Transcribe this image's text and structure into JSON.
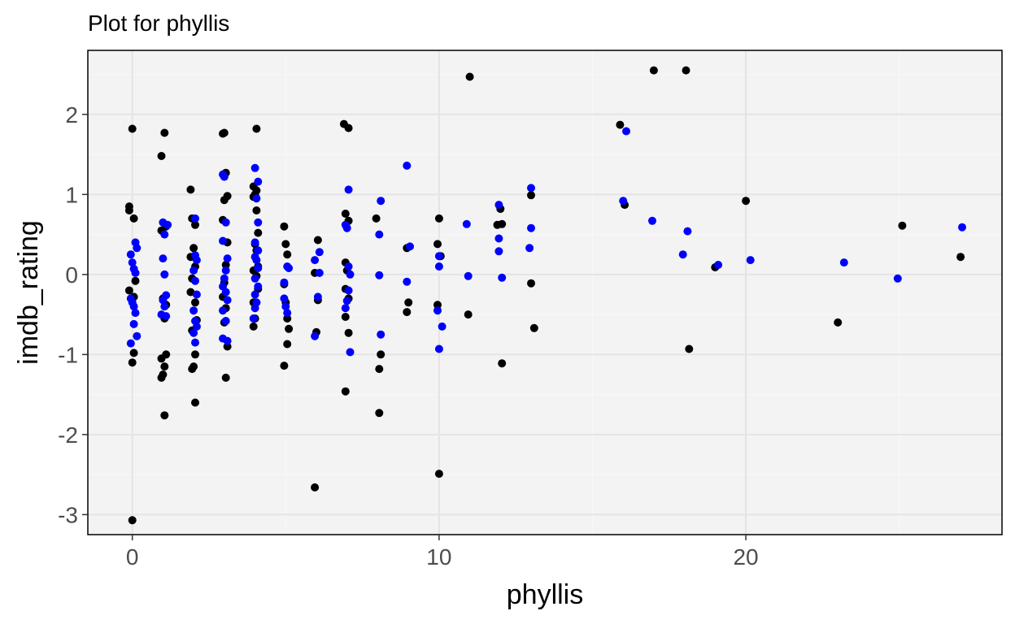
{
  "chart_data": {
    "type": "scatter",
    "title": "Plot for  phyllis",
    "xlabel": "phyllis",
    "ylabel": "imdb_rating",
    "xlim": [
      -1.45,
      28.35
    ],
    "ylim": [
      -3.25,
      2.8
    ],
    "x_ticks": [
      0,
      10,
      20
    ],
    "y_ticks": [
      -3,
      -2,
      -1,
      0,
      1,
      2
    ],
    "x_tick_labels": [
      "0",
      "10",
      "20"
    ],
    "y_tick_labels": [
      "-3",
      "-2",
      "-1",
      "0",
      "1",
      "2"
    ],
    "grid": true,
    "panel_background": "#f3f3f3",
    "grid_color": "#e4e4e4",
    "series": [
      {
        "color": "#000000",
        "points": [
          [
            0,
            1.82
          ],
          [
            -0.1,
            0.85
          ],
          [
            -0.1,
            0.8
          ],
          [
            0.05,
            0.7
          ],
          [
            -0.1,
            -0.2
          ],
          [
            0.1,
            -0.08
          ],
          [
            0.05,
            -0.28
          ],
          [
            0.05,
            -0.98
          ],
          [
            0.0,
            -1.1
          ],
          [
            0.0,
            -3.07
          ],
          [
            1.05,
            1.77
          ],
          [
            0.95,
            1.48
          ],
          [
            1.1,
            0.6
          ],
          [
            0.95,
            0.55
          ],
          [
            1.0,
            -0.3
          ],
          [
            1.1,
            -0.38
          ],
          [
            1.05,
            -0.55
          ],
          [
            1.1,
            -1.0
          ],
          [
            0.95,
            -1.05
          ],
          [
            1.05,
            -1.15
          ],
          [
            1.0,
            -1.25
          ],
          [
            0.95,
            -1.29
          ],
          [
            1.05,
            -1.76
          ],
          [
            1.9,
            1.06
          ],
          [
            1.95,
            0.7
          ],
          [
            2.05,
            0.62
          ],
          [
            2.0,
            0.33
          ],
          [
            1.9,
            0.22
          ],
          [
            2.05,
            0.1
          ],
          [
            1.95,
            -0.05
          ],
          [
            1.9,
            -0.22
          ],
          [
            2.05,
            -0.35
          ],
          [
            2.1,
            -0.57
          ],
          [
            1.95,
            -0.7
          ],
          [
            2.05,
            -1.0
          ],
          [
            2.0,
            -1.15
          ],
          [
            1.95,
            -1.18
          ],
          [
            2.05,
            -1.6
          ],
          [
            3.0,
            1.77
          ],
          [
            2.95,
            1.76
          ],
          [
            3.05,
            1.27
          ],
          [
            3.1,
            0.98
          ],
          [
            3.0,
            0.93
          ],
          [
            2.95,
            0.68
          ],
          [
            3.1,
            0.4
          ],
          [
            3.05,
            0.12
          ],
          [
            3.0,
            -0.1
          ],
          [
            2.95,
            -0.28
          ],
          [
            3.05,
            -0.42
          ],
          [
            3.0,
            -0.6
          ],
          [
            3.1,
            -0.9
          ],
          [
            3.05,
            -1.29
          ],
          [
            4.05,
            1.82
          ],
          [
            3.95,
            1.1
          ],
          [
            4.05,
            1.05
          ],
          [
            4.0,
            1.0
          ],
          [
            3.95,
            0.97
          ],
          [
            4.05,
            0.8
          ],
          [
            4.1,
            0.52
          ],
          [
            4.0,
            0.38
          ],
          [
            4.05,
            0.3
          ],
          [
            4.1,
            0.1
          ],
          [
            3.95,
            0.05
          ],
          [
            4.05,
            -0.02
          ],
          [
            4.1,
            -0.18
          ],
          [
            3.95,
            -0.35
          ],
          [
            4.0,
            -0.55
          ],
          [
            3.95,
            -0.65
          ],
          [
            4.95,
            0.6
          ],
          [
            5.0,
            0.38
          ],
          [
            5.05,
            0.25
          ],
          [
            4.95,
            -0.12
          ],
          [
            5.0,
            -0.35
          ],
          [
            5.05,
            -0.55
          ],
          [
            5.1,
            -0.68
          ],
          [
            5.05,
            -0.87
          ],
          [
            4.95,
            -1.14
          ],
          [
            6.05,
            0.43
          ],
          [
            5.95,
            0.02
          ],
          [
            6.05,
            -0.32
          ],
          [
            6.0,
            -0.72
          ],
          [
            5.95,
            -2.66
          ],
          [
            6.9,
            1.88
          ],
          [
            7.05,
            1.83
          ],
          [
            6.95,
            0.76
          ],
          [
            7.05,
            0.67
          ],
          [
            6.95,
            0.15
          ],
          [
            7.0,
            0.05
          ],
          [
            6.95,
            -0.18
          ],
          [
            7.05,
            -0.3
          ],
          [
            6.95,
            -0.53
          ],
          [
            7.05,
            -0.73
          ],
          [
            6.95,
            -1.46
          ],
          [
            7.95,
            0.7
          ],
          [
            8.1,
            -1.0
          ],
          [
            8.05,
            -1.18
          ],
          [
            8.05,
            -1.73
          ],
          [
            8.95,
            0.33
          ],
          [
            9.0,
            -0.35
          ],
          [
            8.95,
            -0.47
          ],
          [
            10.0,
            0.7
          ],
          [
            9.95,
            0.38
          ],
          [
            10.05,
            0.23
          ],
          [
            9.95,
            -0.38
          ],
          [
            10.0,
            -2.49
          ],
          [
            11.0,
            2.47
          ],
          [
            10.95,
            -0.5
          ],
          [
            12.0,
            0.82
          ],
          [
            11.9,
            0.62
          ],
          [
            12.05,
            0.63
          ],
          [
            12.05,
            -1.11
          ],
          [
            13.0,
            0.99
          ],
          [
            13.0,
            -0.11
          ],
          [
            13.1,
            -0.67
          ],
          [
            15.9,
            1.87
          ],
          [
            16.05,
            0.87
          ],
          [
            17.0,
            2.55
          ],
          [
            18.05,
            2.55
          ],
          [
            18.15,
            -0.93
          ],
          [
            19.0,
            0.09
          ],
          [
            20.0,
            0.92
          ],
          [
            23.0,
            -0.6
          ],
          [
            25.1,
            0.61
          ],
          [
            27.0,
            0.22
          ]
        ]
      },
      {
        "color": "#0000ff",
        "points": [
          [
            0.1,
            0.4
          ],
          [
            0.15,
            0.33
          ],
          [
            -0.05,
            0.25
          ],
          [
            0.0,
            0.15
          ],
          [
            0.05,
            0.07
          ],
          [
            0.1,
            0.02
          ],
          [
            -0.05,
            -0.3
          ],
          [
            0.0,
            -0.35
          ],
          [
            0.05,
            -0.4
          ],
          [
            0.1,
            -0.48
          ],
          [
            0.05,
            -0.62
          ],
          [
            0.15,
            -0.77
          ],
          [
            -0.05,
            -0.86
          ],
          [
            1.0,
            0.65
          ],
          [
            1.15,
            0.62
          ],
          [
            1.05,
            0.5
          ],
          [
            1.0,
            0.2
          ],
          [
            1.05,
            0.0
          ],
          [
            1.1,
            -0.26
          ],
          [
            1.0,
            -0.32
          ],
          [
            1.05,
            -0.4
          ],
          [
            0.95,
            -0.5
          ],
          [
            1.1,
            -0.52
          ],
          [
            2.05,
            0.7
          ],
          [
            2.05,
            0.24
          ],
          [
            2.1,
            0.18
          ],
          [
            2.0,
            0.05
          ],
          [
            2.05,
            -0.08
          ],
          [
            2.1,
            -0.25
          ],
          [
            2.0,
            -0.45
          ],
          [
            2.05,
            -0.58
          ],
          [
            2.1,
            -0.65
          ],
          [
            2.0,
            -0.73
          ],
          [
            2.05,
            -0.85
          ],
          [
            2.95,
            1.25
          ],
          [
            3.0,
            1.22
          ],
          [
            3.05,
            0.65
          ],
          [
            2.95,
            0.42
          ],
          [
            3.1,
            0.2
          ],
          [
            3.05,
            0.05
          ],
          [
            3.0,
            -0.05
          ],
          [
            2.95,
            -0.15
          ],
          [
            3.05,
            -0.22
          ],
          [
            3.1,
            -0.32
          ],
          [
            2.95,
            -0.45
          ],
          [
            3.05,
            -0.58
          ],
          [
            2.95,
            -0.8
          ],
          [
            3.1,
            -0.83
          ],
          [
            4.0,
            1.33
          ],
          [
            4.1,
            1.16
          ],
          [
            4.05,
            0.95
          ],
          [
            4.1,
            0.65
          ],
          [
            4.0,
            0.4
          ],
          [
            4.1,
            0.3
          ],
          [
            4.0,
            0.22
          ],
          [
            4.05,
            0.18
          ],
          [
            4.1,
            0.08
          ],
          [
            4.0,
            -0.05
          ],
          [
            4.1,
            -0.15
          ],
          [
            4.0,
            -0.25
          ],
          [
            4.05,
            -0.35
          ],
          [
            4.0,
            -0.42
          ],
          [
            3.95,
            -0.55
          ],
          [
            4.95,
            -0.1
          ],
          [
            5.05,
            0.1
          ],
          [
            5.1,
            0.08
          ],
          [
            4.95,
            -0.3
          ],
          [
            5.0,
            -0.4
          ],
          [
            5.05,
            -0.48
          ],
          [
            6.1,
            0.28
          ],
          [
            5.95,
            0.18
          ],
          [
            6.1,
            0.02
          ],
          [
            6.05,
            -0.28
          ],
          [
            5.95,
            -0.77
          ],
          [
            7.05,
            1.06
          ],
          [
            6.95,
            0.62
          ],
          [
            7.0,
            0.58
          ],
          [
            7.05,
            0.1
          ],
          [
            7.1,
            0.0
          ],
          [
            7.05,
            -0.2
          ],
          [
            7.0,
            -0.33
          ],
          [
            6.95,
            -0.42
          ],
          [
            7.1,
            -0.97
          ],
          [
            8.1,
            0.92
          ],
          [
            8.05,
            0.5
          ],
          [
            8.05,
            -0.01
          ],
          [
            8.1,
            -0.75
          ],
          [
            8.95,
            1.36
          ],
          [
            9.05,
            0.35
          ],
          [
            8.95,
            -0.09
          ],
          [
            10.0,
            0.23
          ],
          [
            10.0,
            0.1
          ],
          [
            9.95,
            -0.45
          ],
          [
            10.1,
            -0.65
          ],
          [
            10.0,
            -0.93
          ],
          [
            10.9,
            0.63
          ],
          [
            10.95,
            -0.02
          ],
          [
            11.95,
            0.87
          ],
          [
            11.95,
            0.45
          ],
          [
            11.95,
            0.29
          ],
          [
            12.05,
            -0.04
          ],
          [
            13.0,
            1.08
          ],
          [
            13.0,
            0.58
          ],
          [
            12.95,
            0.33
          ],
          [
            16.0,
            0.92
          ],
          [
            16.1,
            1.79
          ],
          [
            16.95,
            0.67
          ],
          [
            17.95,
            0.25
          ],
          [
            18.1,
            0.54
          ],
          [
            19.1,
            0.12
          ],
          [
            20.15,
            0.18
          ],
          [
            23.2,
            0.15
          ],
          [
            24.95,
            -0.05
          ],
          [
            27.05,
            0.59
          ]
        ]
      }
    ]
  }
}
